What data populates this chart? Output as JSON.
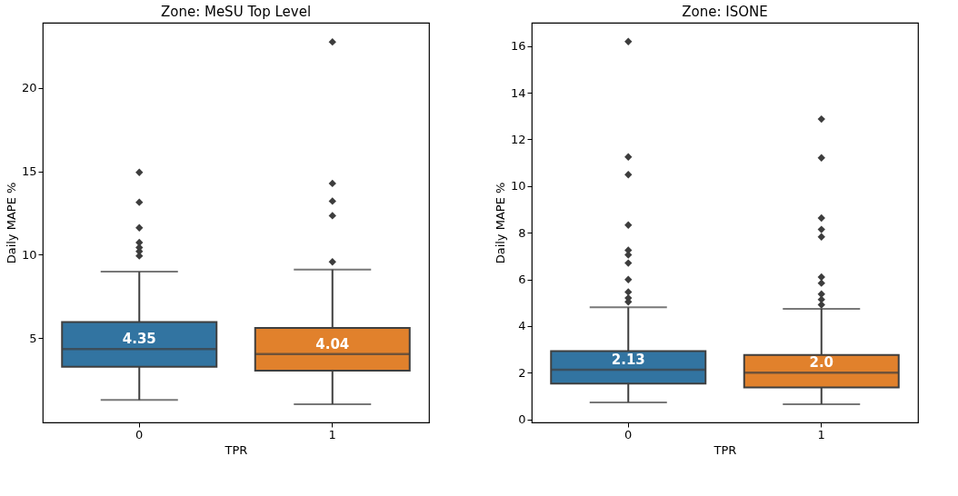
{
  "chart_data": [
    {
      "type": "box",
      "title": "Zone: MeSU Top Level",
      "xlabel": "TPR",
      "ylabel": "Daily MAPE %",
      "categories": [
        "0",
        "1"
      ],
      "colors": [
        "#3274a1",
        "#e1812c"
      ],
      "marker": "diamond",
      "value_labels": [
        "4.35",
        "4.04"
      ],
      "grid": false,
      "ylim": [
        -0.05,
        23.9
      ],
      "yticks": [
        5,
        10,
        15,
        20
      ],
      "boxes": [
        {
          "low": 1.3,
          "q1": 3.29,
          "median": 4.35,
          "q3": 5.96,
          "high": 8.98,
          "outliers": [
            14.93,
            13.14,
            11.61,
            10.73,
            10.43,
            10.2,
            9.93
          ]
        },
        {
          "low": 1.04,
          "q1": 3.05,
          "median": 4.04,
          "q3": 5.61,
          "high": 9.11,
          "outliers": [
            22.75,
            14.27,
            13.21,
            12.34,
            9.57
          ]
        }
      ]
    },
    {
      "type": "box",
      "title": "Zone: ISONE",
      "xlabel": "TPR",
      "ylabel": "Daily MAPE %",
      "categories": [
        "0",
        "1"
      ],
      "colors": [
        "#3274a1",
        "#e1812c"
      ],
      "marker": "diamond",
      "value_labels": [
        "2.13",
        "2.0"
      ],
      "grid": false,
      "ylim": [
        -0.13,
        17.0
      ],
      "yticks": [
        0,
        2,
        4,
        6,
        8,
        10,
        12,
        14,
        16
      ],
      "boxes": [
        {
          "low": 0.73,
          "q1": 1.53,
          "median": 2.13,
          "q3": 2.93,
          "high": 4.8,
          "outliers": [
            16.19,
            11.25,
            10.49,
            8.33,
            7.25,
            7.05,
            6.7,
            5.99,
            5.46,
            5.2,
            5.04
          ]
        },
        {
          "low": 0.65,
          "q1": 1.37,
          "median": 2.0,
          "q3": 2.76,
          "high": 4.74,
          "outliers": [
            12.87,
            11.21,
            8.63,
            8.14,
            7.82,
            6.1,
            5.84,
            5.37,
            5.14,
            4.91
          ]
        }
      ]
    }
  ]
}
